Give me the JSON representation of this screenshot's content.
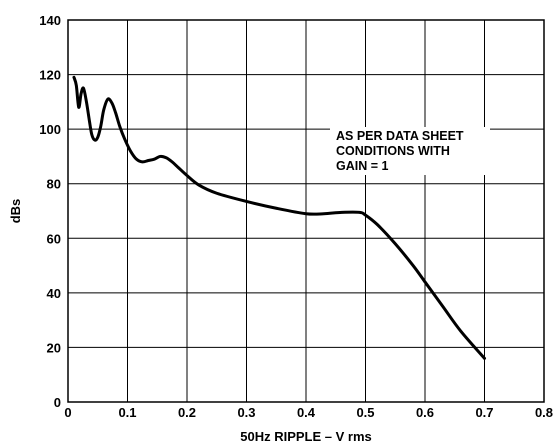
{
  "chart_data": {
    "type": "line",
    "title": "",
    "xlabel": "50Hz RIPPLE – V rms",
    "ylabel": "dBs",
    "xlim": [
      0,
      0.8
    ],
    "ylim": [
      0,
      140
    ],
    "grid": true,
    "x_ticks": [
      "0",
      "0.1",
      "0.2",
      "0.3",
      "0.4",
      "0.5",
      "0.6",
      "0.7",
      "0.8"
    ],
    "y_ticks": [
      "0",
      "20",
      "40",
      "60",
      "80",
      "100",
      "120",
      "140"
    ],
    "annotation": [
      "AS PER DATA SHEET",
      "CONDITIONS WITH",
      "GAIN = 1"
    ],
    "series": [
      {
        "x": [
          0.01,
          0.014,
          0.018,
          0.022,
          0.026,
          0.031,
          0.036,
          0.04,
          0.045,
          0.05,
          0.055,
          0.06,
          0.067,
          0.074,
          0.08,
          0.087,
          0.095,
          0.105,
          0.115,
          0.125,
          0.135,
          0.145,
          0.155,
          0.165,
          0.175,
          0.185,
          0.2,
          0.22,
          0.25,
          0.3,
          0.35,
          0.4,
          0.43,
          0.46,
          0.49,
          0.5,
          0.52,
          0.55,
          0.58,
          0.6,
          0.63,
          0.66,
          0.7
        ],
        "y": [
          119,
          116,
          108,
          113,
          115,
          110,
          103,
          98,
          96,
          97,
          101,
          107,
          111,
          109.5,
          106,
          101,
          96.5,
          92,
          89,
          88,
          88.5,
          89,
          90,
          89.5,
          88,
          86,
          83,
          79.5,
          76.5,
          73.5,
          71,
          69,
          69,
          69.5,
          69.5,
          68.5,
          65,
          58,
          50,
          44,
          35,
          26,
          16
        ]
      }
    ]
  }
}
